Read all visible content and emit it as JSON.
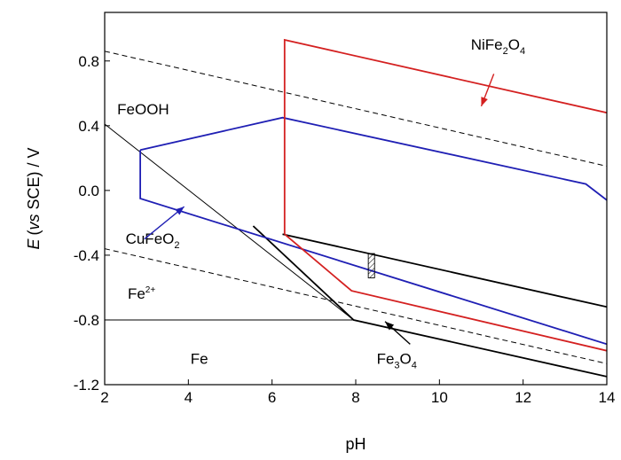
{
  "chart_data": {
    "type": "line",
    "title": "",
    "xlabel": "pH",
    "ylabel": {
      "italic": "E",
      "mid_italic": "vs",
      "pre": "(",
      "post": " SCE) / V"
    },
    "xlim": [
      2,
      14
    ],
    "ylim": [
      -1.2,
      1.1
    ],
    "xticks": [
      2,
      4,
      6,
      8,
      10,
      12,
      14
    ],
    "xtick_labels": [
      "2",
      "4",
      "6",
      "8",
      "10",
      "12",
      "14"
    ],
    "yticks": [
      -1.2,
      -0.8,
      -0.4,
      0.0,
      0.4,
      0.8
    ],
    "ytick_labels": [
      "-1.2",
      "-0.8",
      "-0.4",
      "0.0",
      "0.4",
      "0.8"
    ],
    "grid": false,
    "colors": {
      "black": "#000000",
      "blue": "#1f1fb4",
      "red": "#d42020",
      "dash": "#000000"
    },
    "series": [
      {
        "color": "black",
        "width": 1.0,
        "dash": "6,4",
        "points": [
          [
            2,
            0.86
          ],
          [
            14,
            0.15
          ]
        ]
      },
      {
        "color": "black",
        "width": 1.0,
        "dash": "6,4",
        "points": [
          [
            2,
            -0.36
          ],
          [
            14,
            -1.07
          ]
        ]
      },
      {
        "color": "black",
        "width": 1.0,
        "dash": "",
        "points": [
          [
            2,
            0.41
          ],
          [
            7.95,
            -0.8
          ]
        ]
      },
      {
        "color": "black",
        "width": 1.0,
        "dash": "",
        "points": [
          [
            2,
            -0.8
          ],
          [
            7.95,
            -0.8
          ]
        ]
      },
      {
        "color": "black",
        "width": 1.8,
        "dash": "",
        "points": [
          [
            5.55,
            -0.22
          ],
          [
            7.95,
            -0.8
          ],
          [
            14,
            -1.15
          ]
        ]
      },
      {
        "color": "black",
        "width": 1.8,
        "dash": "",
        "points": [
          [
            6.25,
            -0.27
          ],
          [
            14,
            -0.72
          ]
        ]
      },
      {
        "color": "blue",
        "width": 1.8,
        "dash": "",
        "points": [
          [
            2.85,
            0.25
          ],
          [
            6.25,
            0.45
          ],
          [
            13.5,
            0.04
          ],
          [
            14,
            -0.06
          ]
        ]
      },
      {
        "color": "blue",
        "width": 1.8,
        "dash": "",
        "points": [
          [
            2.85,
            0.25
          ],
          [
            2.85,
            -0.05
          ],
          [
            14,
            -0.95
          ]
        ]
      },
      {
        "color": "red",
        "width": 1.8,
        "dash": "",
        "points": [
          [
            6.3,
            -0.27
          ],
          [
            6.3,
            0.93
          ],
          [
            14,
            0.48
          ]
        ]
      },
      {
        "color": "red",
        "width": 1.8,
        "dash": "",
        "points": [
          [
            6.3,
            -0.27
          ],
          [
            7.9,
            -0.62
          ],
          [
            14,
            -0.99
          ]
        ]
      }
    ],
    "hatched_box": {
      "x": [
        8.3,
        8.45
      ],
      "y": [
        -0.54,
        -0.39
      ]
    },
    "labels": [
      {
        "id": "feooh",
        "parts": [
          {
            "t": "FeOOH"
          }
        ],
        "color": "black",
        "x": 2.3,
        "y": 0.47
      },
      {
        "id": "fe2plus",
        "parts": [
          {
            "t": "Fe"
          },
          {
            "t": "2+",
            "sup": true
          }
        ],
        "color": "black",
        "x": 2.55,
        "y": -0.67
      },
      {
        "id": "fe",
        "parts": [
          {
            "t": "Fe"
          }
        ],
        "color": "black",
        "x": 4.05,
        "y": -1.07
      },
      {
        "id": "cufeo2",
        "parts": [
          {
            "t": "CuFeO"
          },
          {
            "t": "2",
            "sub": true
          }
        ],
        "color": "blue",
        "x": 2.5,
        "y": -0.33
      },
      {
        "id": "nife2o4",
        "parts": [
          {
            "t": "NiFe"
          },
          {
            "t": "2",
            "sub": true
          },
          {
            "t": "O"
          },
          {
            "t": "4",
            "sub": true
          }
        ],
        "color": "red",
        "x": 10.75,
        "y": 0.87
      },
      {
        "id": "fe3o4",
        "parts": [
          {
            "t": "Fe"
          },
          {
            "t": "3",
            "sub": true
          },
          {
            "t": "O"
          },
          {
            "t": "4",
            "sub": true
          }
        ],
        "color": "black",
        "x": 8.5,
        "y": -1.07
      }
    ],
    "arrows": [
      {
        "color": "blue",
        "from": [
          2.95,
          -0.3
        ],
        "to": [
          3.9,
          -0.1
        ]
      },
      {
        "color": "red",
        "from": [
          11.3,
          0.72
        ],
        "to": [
          11.0,
          0.52
        ]
      },
      {
        "color": "black",
        "from": [
          9.3,
          -0.95
        ],
        "to": [
          8.7,
          -0.81
        ]
      }
    ]
  }
}
